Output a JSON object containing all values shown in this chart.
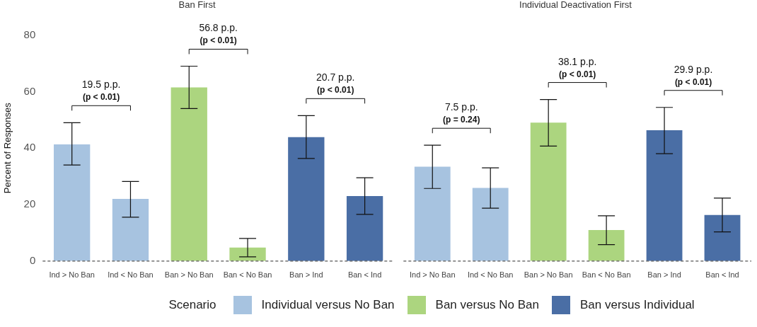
{
  "chart_data": [
    {
      "type": "bar",
      "title": "Ban First",
      "ylabel": "Percent of Responses",
      "legend_title": "Scenario",
      "legend": "bottom",
      "categories": [
        "Ind > No Ban",
        "Ind < No Ban",
        "Ban > No Ban",
        "Ban < No Ban",
        "Ban > Ind",
        "Ban < Ind"
      ],
      "series": [
        {
          "name": "Individual versus No Ban",
          "color": "#a7c3e0",
          "values": [
            41.3,
            22,
            null,
            null,
            null,
            null
          ],
          "errors": [
            [
              34,
              49
            ],
            [
              15.5,
              28.2
            ],
            null,
            null,
            null,
            null
          ]
        },
        {
          "name": "Ban versus No Ban",
          "color": "#acd57f",
          "values": [
            null,
            null,
            61.5,
            4.8,
            null,
            null
          ],
          "errors": [
            null,
            null,
            [
              54,
              69
            ],
            [
              1.5,
              8
            ],
            null,
            null
          ]
        },
        {
          "name": "Ban versus Individual",
          "color": "#4a6ea5",
          "values": [
            null,
            null,
            null,
            null,
            43.9,
            23
          ],
          "errors": [
            null,
            null,
            null,
            null,
            [
              36.3,
              51.5
            ],
            [
              16.5,
              29.5
            ]
          ]
        }
      ],
      "ylim": [
        0,
        80
      ],
      "yticks": [
        0,
        20,
        40,
        60,
        80
      ],
      "grid": false,
      "ref_lines": [
        {
          "axis": "y",
          "value": 0,
          "line_style": "dashed",
          "color": "#555555"
        }
      ],
      "annotations": [
        "19.5 p.p.\n(p < 0.01)",
        "56.8 p.p.\n(p < 0.01)",
        "20.7 p.p.\n(p < 0.01)"
      ]
    },
    {
      "type": "bar",
      "title": "Individual Deactivation First",
      "tick_labels": "x",
      "categories": [
        "Ind > No Ban",
        "Ind < No Ban",
        "Ban > No Ban",
        "Ban < No Ban",
        "Ban > Ind",
        "Ban < Ind"
      ],
      "series": [
        {
          "color": "#a7c3e0",
          "values": [
            33.4,
            25.9,
            null,
            null,
            null,
            null
          ],
          "errors": [
            [
              25.7,
              41
            ],
            [
              18.7,
              33
            ],
            null,
            null,
            null,
            null
          ]
        },
        {
          "color": "#acd57f",
          "values": [
            null,
            null,
            49,
            11,
            null,
            null
          ],
          "errors": [
            null,
            null,
            [
              40.7,
              57.2
            ],
            [
              5.8,
              16
            ],
            null,
            null
          ]
        },
        {
          "color": "#4a6ea5",
          "values": [
            null,
            null,
            null,
            null,
            46.3,
            16.3
          ],
          "errors": [
            null,
            null,
            null,
            null,
            [
              38,
              54.4
            ],
            [
              10.3,
              22.3
            ]
          ]
        }
      ],
      "ylim": [
        0,
        80
      ],
      "yticks": [
        0,
        20,
        40,
        60,
        80
      ],
      "grid": false,
      "ref_lines": [
        {
          "axis": "y",
          "value": 0,
          "line_style": "dashed",
          "color": "#555555"
        }
      ],
      "annotations": [
        "7.5 p.p.\n(p = 0.24)",
        "38.1 p.p.\n(p < 0.01)",
        "29.9 p.p.\n(p < 0.01)"
      ]
    }
  ]
}
